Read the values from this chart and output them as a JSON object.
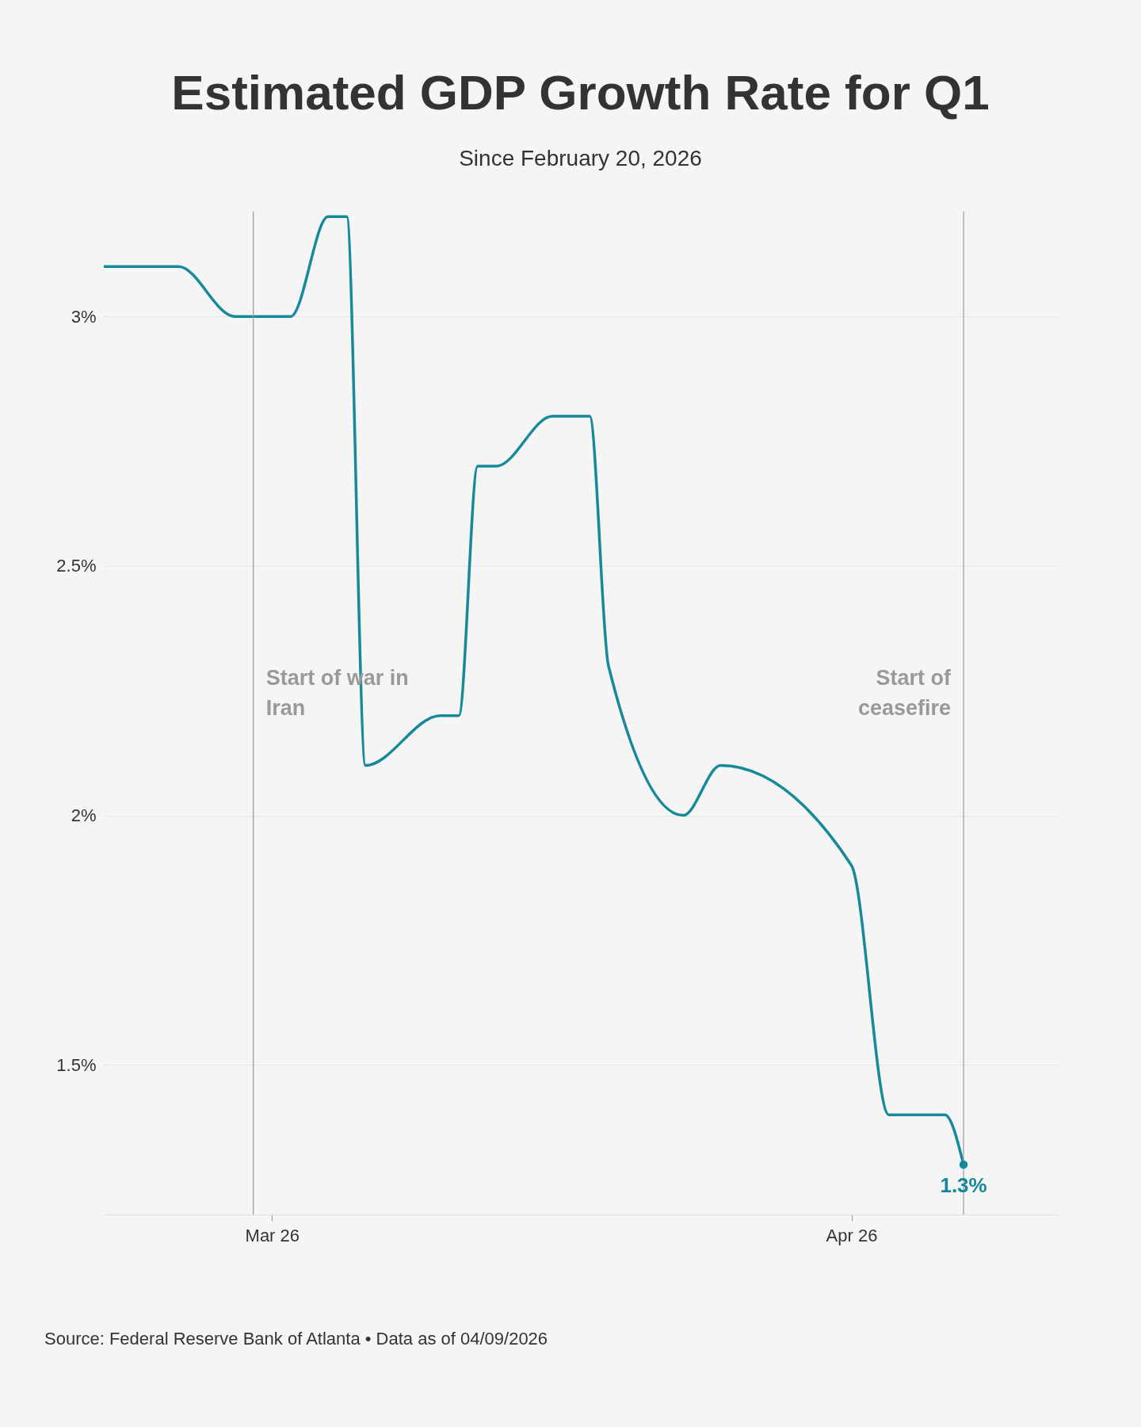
{
  "chart_data": {
    "type": "line",
    "title": "Estimated GDP Growth Rate for Q1",
    "subtitle": "Since February 20, 2026",
    "x": [
      "2026-02-20",
      "2026-02-24",
      "2026-02-27",
      "2026-03-02",
      "2026-03-04",
      "2026-03-05",
      "2026-03-06",
      "2026-03-10",
      "2026-03-11",
      "2026-03-12",
      "2026-03-13",
      "2026-03-16",
      "2026-03-18",
      "2026-03-19",
      "2026-03-23",
      "2026-03-25",
      "2026-04-01",
      "2026-04-03",
      "2026-04-06",
      "2026-04-07"
    ],
    "series": [
      {
        "color": "#16899a",
        "values": [
          3.1,
          3.1,
          3.0,
          3.0,
          3.2,
          3.2,
          2.1,
          2.2,
          2.2,
          2.7,
          2.7,
          2.8,
          2.8,
          2.3,
          2.0,
          2.1,
          1.9,
          1.4,
          1.4,
          1.3
        ],
        "value_labels": [
          null,
          null,
          null,
          null,
          null,
          null,
          null,
          null,
          null,
          null,
          null,
          null,
          null,
          null,
          null,
          null,
          null,
          null,
          null,
          "1.3%"
        ]
      }
    ],
    "xlim": [
      "2026-02-20",
      "2026-04-12"
    ],
    "xticks": [
      {
        "value": "2026-03-01",
        "label": "Mar 26"
      },
      {
        "value": "2026-04-01",
        "label": "Apr 26"
      }
    ],
    "ylim": [
      1.2,
      3.21
    ],
    "yticks": [
      {
        "value": 1.5,
        "label": "1.5%"
      },
      {
        "value": 2,
        "label": "2%"
      },
      {
        "value": 2.5,
        "label": "2.5%"
      },
      {
        "value": 3,
        "label": "3%"
      }
    ],
    "grid": "y",
    "line_style": "solid",
    "ref_lines": [
      {
        "axis": "x",
        "value": "2026-02-28",
        "label": "Start of war in Iran",
        "color": "#999999"
      },
      {
        "axis": "x",
        "value": "2026-04-07",
        "label": "Start of ceasefire",
        "color": "#999999"
      }
    ],
    "annotations": [
      "Source: Federal Reserve Bank of Atlanta • Data as of 04/09/2026"
    ]
  }
}
